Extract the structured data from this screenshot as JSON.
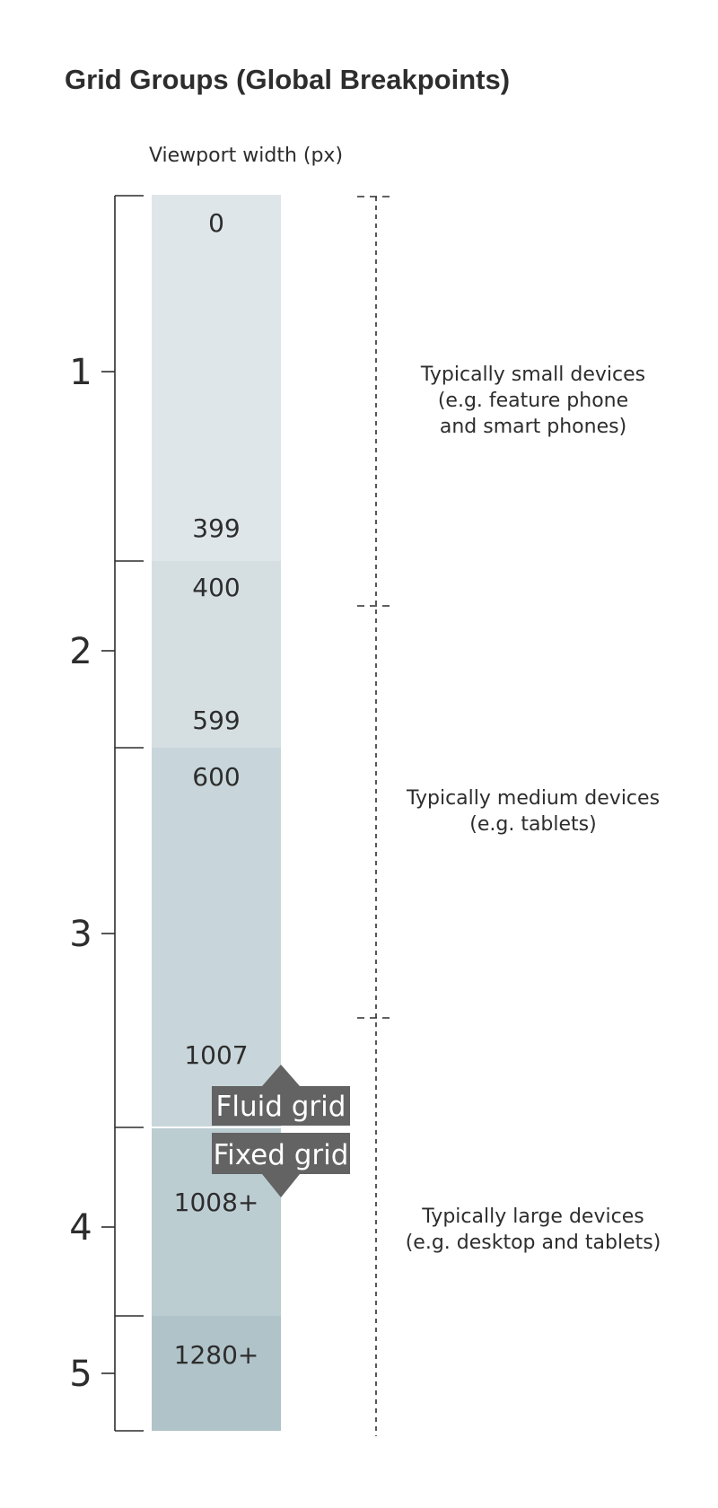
{
  "title": "Grid Groups (Global Breakpoints)",
  "column_header": "Viewport width (px)",
  "groups": [
    {
      "label": "1",
      "start_label": "0",
      "end_label": "399",
      "color": "#dee6e9"
    },
    {
      "label": "2",
      "start_label": "400",
      "end_label": "599",
      "color": "#d5dfe2"
    },
    {
      "label": "3",
      "start_label": "600",
      "end_label": "1007",
      "color": "#c8d6db"
    },
    {
      "label": "4",
      "start_label": "1008+",
      "end_label": "",
      "color": "#bccdd2"
    },
    {
      "label": "5",
      "start_label": "1280+",
      "end_label": "",
      "color": "#b0c3c9"
    }
  ],
  "grid_tags": {
    "fluid": "Fluid grid",
    "fixed": "Fixed grid",
    "tag_color": "#636363"
  },
  "device_ranges": [
    {
      "lines": [
        "Typically small devices",
        "(e.g. feature phone",
        "and smart phones)"
      ]
    },
    {
      "lines": [
        "Typically medium devices",
        "(e.g. tablets)"
      ]
    },
    {
      "lines": [
        "Typically large devices",
        "(e.g. desktop and tablets)"
      ]
    }
  ]
}
